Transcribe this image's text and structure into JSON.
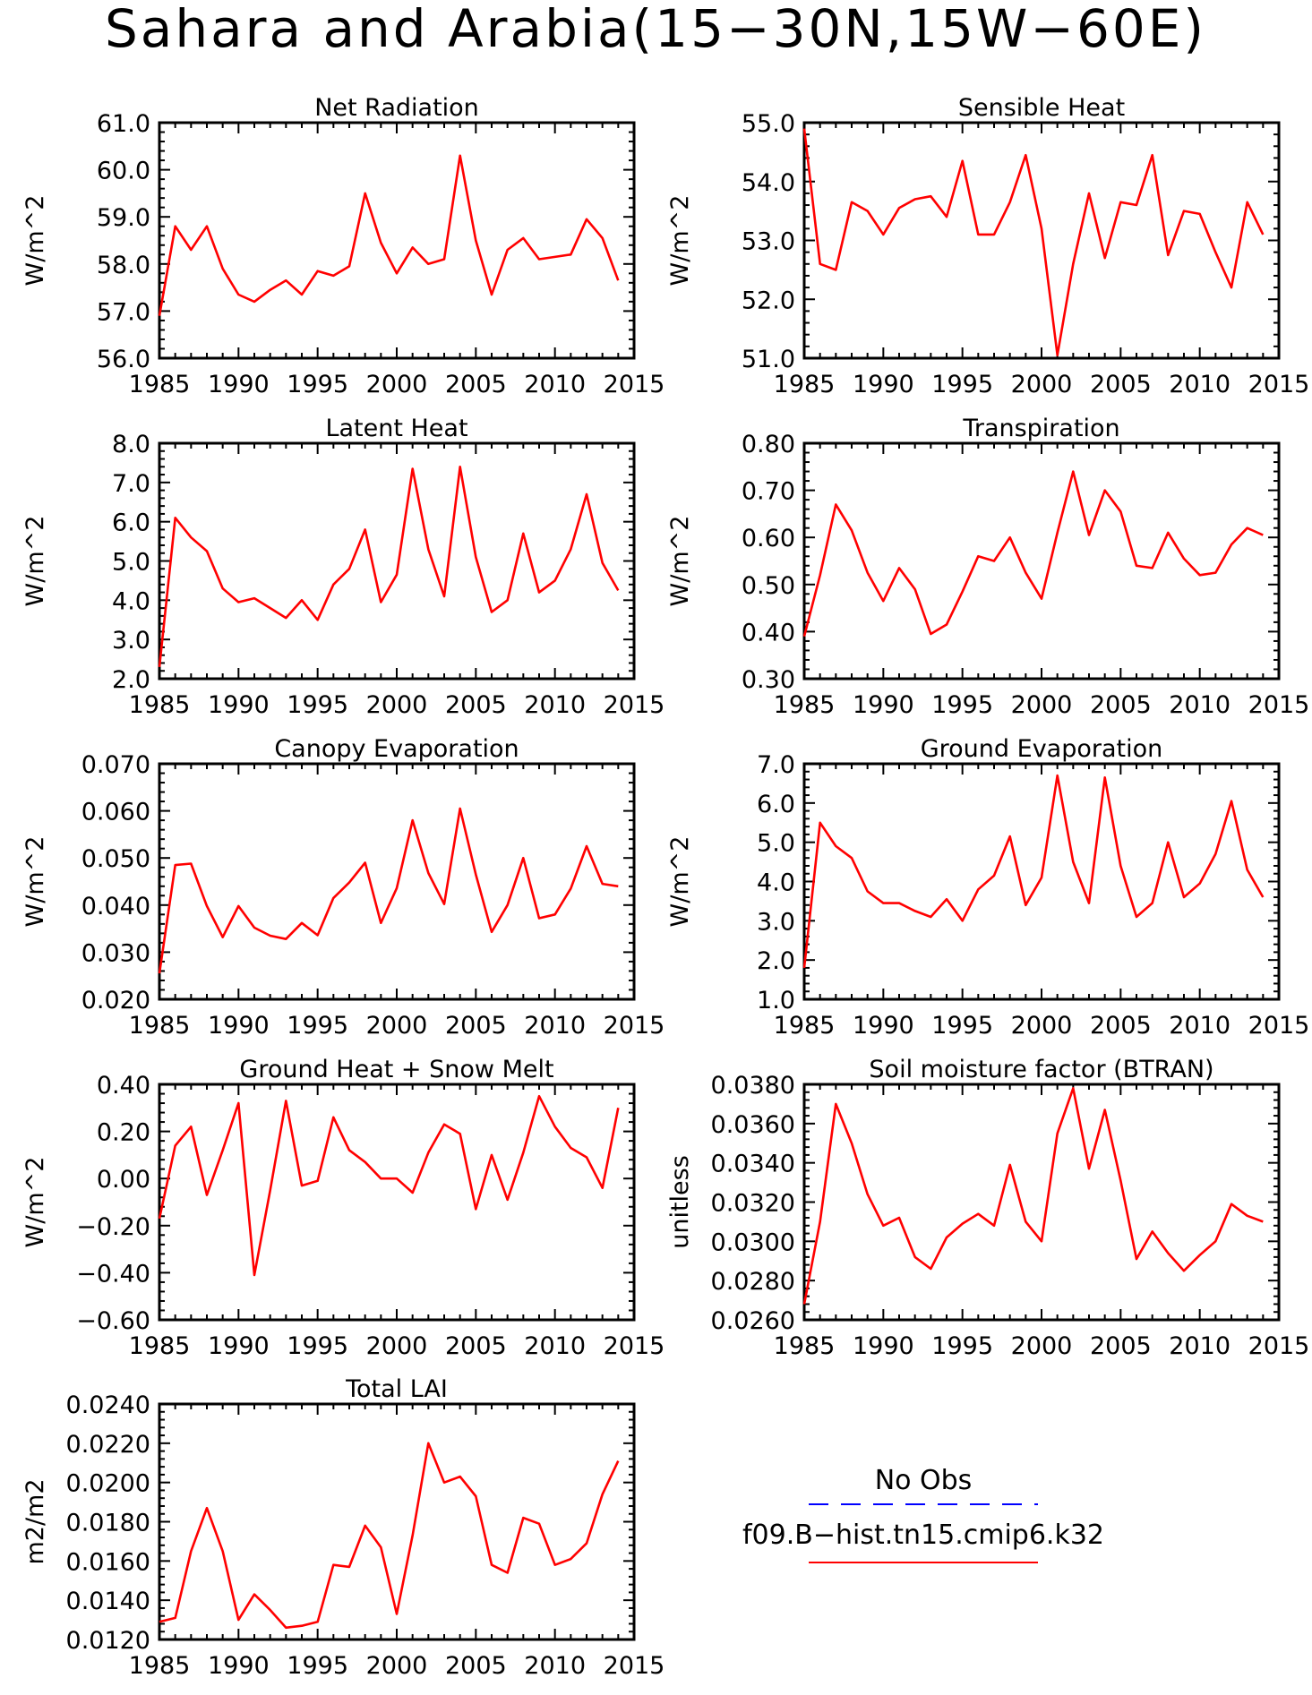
{
  "title": "Sahara and Arabia(15−30N,15W−60E)",
  "colors": {
    "model": "#ff0000",
    "obs": "#0000ff"
  },
  "legend": {
    "obs_label": "No Obs",
    "model_label": "f09.B−hist.tn15.cmip6.k32"
  },
  "chart_data": [
    {
      "type": "line",
      "title": "Net Radiation",
      "ylabel": "W/m^2",
      "xlim": [
        1985,
        2015
      ],
      "ylim": [
        56.0,
        61.0
      ],
      "xticks": [
        1985,
        1990,
        1995,
        2000,
        2005,
        2010,
        2015
      ],
      "yticks": [
        "56.0",
        "57.0",
        "58.0",
        "59.0",
        "60.0",
        "61.0"
      ],
      "x": [
        1985,
        1986,
        1987,
        1988,
        1989,
        1990,
        1991,
        1992,
        1993,
        1994,
        1995,
        1996,
        1997,
        1998,
        1999,
        2000,
        2001,
        2002,
        2003,
        2004,
        2005,
        2006,
        2007,
        2008,
        2009,
        2010,
        2011,
        2012,
        2013,
        2014
      ],
      "series": [
        {
          "values": [
            56.9,
            58.8,
            58.3,
            58.8,
            57.9,
            57.35,
            57.2,
            57.45,
            57.65,
            57.35,
            57.85,
            57.75,
            57.95,
            59.5,
            58.45,
            57.8,
            58.35,
            58.0,
            58.1,
            60.3,
            58.5,
            57.35,
            58.3,
            58.55,
            58.1,
            58.15,
            58.2,
            58.95,
            58.55,
            57.65
          ]
        }
      ]
    },
    {
      "type": "line",
      "title": "Sensible Heat",
      "ylabel": "W/m^2",
      "xlim": [
        1985,
        2015
      ],
      "ylim": [
        51.0,
        55.0
      ],
      "xticks": [
        1985,
        1990,
        1995,
        2000,
        2005,
        2010,
        2015
      ],
      "yticks": [
        "51.0",
        "52.0",
        "53.0",
        "54.0",
        "55.0"
      ],
      "x": [
        1985,
        1986,
        1987,
        1988,
        1989,
        1990,
        1991,
        1992,
        1993,
        1994,
        1995,
        1996,
        1997,
        1998,
        1999,
        2000,
        2001,
        2002,
        2003,
        2004,
        2005,
        2006,
        2007,
        2008,
        2009,
        2010,
        2011,
        2012,
        2013,
        2014
      ],
      "series": [
        {
          "values": [
            54.9,
            52.6,
            52.5,
            53.65,
            53.5,
            53.1,
            53.55,
            53.7,
            53.75,
            53.4,
            54.35,
            53.1,
            53.1,
            53.65,
            54.45,
            53.2,
            51.05,
            52.6,
            53.8,
            52.7,
            53.65,
            53.6,
            54.45,
            52.75,
            53.5,
            53.45,
            52.8,
            52.2,
            53.65,
            53.1
          ]
        }
      ]
    },
    {
      "type": "line",
      "title": "Latent Heat",
      "ylabel": "W/m^2",
      "xlim": [
        1985,
        2015
      ],
      "ylim": [
        2.0,
        8.0
      ],
      "xticks": [
        1985,
        1990,
        1995,
        2000,
        2005,
        2010,
        2015
      ],
      "yticks": [
        "2.0",
        "3.0",
        "4.0",
        "5.0",
        "6.0",
        "7.0",
        "8.0"
      ],
      "x": [
        1985,
        1986,
        1987,
        1988,
        1989,
        1990,
        1991,
        1992,
        1993,
        1994,
        1995,
        1996,
        1997,
        1998,
        1999,
        2000,
        2001,
        2002,
        2003,
        2004,
        2005,
        2006,
        2007,
        2008,
        2009,
        2010,
        2011,
        2012,
        2013,
        2014
      ],
      "series": [
        {
          "values": [
            2.3,
            6.1,
            5.6,
            5.25,
            4.3,
            3.95,
            4.05,
            3.8,
            3.55,
            4.0,
            3.5,
            4.4,
            4.8,
            5.8,
            3.95,
            4.65,
            7.35,
            5.3,
            4.1,
            7.4,
            5.1,
            3.7,
            4.0,
            5.7,
            4.2,
            4.5,
            5.3,
            6.7,
            4.95,
            4.25
          ]
        }
      ]
    },
    {
      "type": "line",
      "title": "Transpiration",
      "ylabel": "W/m^2",
      "xlim": [
        1985,
        2015
      ],
      "ylim": [
        0.3,
        0.8
      ],
      "xticks": [
        1985,
        1990,
        1995,
        2000,
        2005,
        2010,
        2015
      ],
      "yticks": [
        "0.30",
        "0.40",
        "0.50",
        "0.60",
        "0.70",
        "0.80"
      ],
      "x": [
        1985,
        1986,
        1987,
        1988,
        1989,
        1990,
        1991,
        1992,
        1993,
        1994,
        1995,
        1996,
        1997,
        1998,
        1999,
        2000,
        2001,
        2002,
        2003,
        2004,
        2005,
        2006,
        2007,
        2008,
        2009,
        2010,
        2011,
        2012,
        2013,
        2014
      ],
      "series": [
        {
          "values": [
            0.39,
            0.52,
            0.67,
            0.615,
            0.525,
            0.465,
            0.535,
            0.49,
            0.395,
            0.415,
            0.485,
            0.56,
            0.55,
            0.6,
            0.525,
            0.47,
            0.61,
            0.74,
            0.605,
            0.7,
            0.655,
            0.54,
            0.535,
            0.61,
            0.555,
            0.52,
            0.525,
            0.585,
            0.62,
            0.605
          ]
        }
      ]
    },
    {
      "type": "line",
      "title": "Canopy Evaporation",
      "ylabel": "W/m^2",
      "xlim": [
        1985,
        2015
      ],
      "ylim": [
        0.02,
        0.07
      ],
      "xticks": [
        1985,
        1990,
        1995,
        2000,
        2005,
        2010,
        2015
      ],
      "yticks": [
        "0.020",
        "0.030",
        "0.040",
        "0.050",
        "0.060",
        "0.070"
      ],
      "x": [
        1985,
        1986,
        1987,
        1988,
        1989,
        1990,
        1991,
        1992,
        1993,
        1994,
        1995,
        1996,
        1997,
        1998,
        1999,
        2000,
        2001,
        2002,
        2003,
        2004,
        2005,
        2006,
        2007,
        2008,
        2009,
        2010,
        2011,
        2012,
        2013,
        2014
      ],
      "series": [
        {
          "values": [
            0.0255,
            0.0485,
            0.0488,
            0.0398,
            0.0332,
            0.0398,
            0.0352,
            0.0335,
            0.0328,
            0.0362,
            0.0336,
            0.0415,
            0.0448,
            0.049,
            0.0362,
            0.0436,
            0.058,
            0.0468,
            0.0402,
            0.0605,
            0.0465,
            0.0343,
            0.04,
            0.05,
            0.0372,
            0.038,
            0.0435,
            0.0525,
            0.0445,
            0.044
          ]
        }
      ]
    },
    {
      "type": "line",
      "title": "Ground Evaporation",
      "ylabel": "W/m^2",
      "xlim": [
        1985,
        2015
      ],
      "ylim": [
        1.0,
        7.0
      ],
      "xticks": [
        1985,
        1990,
        1995,
        2000,
        2005,
        2010,
        2015
      ],
      "yticks": [
        "1.0",
        "2.0",
        "3.0",
        "4.0",
        "5.0",
        "6.0",
        "7.0"
      ],
      "x": [
        1985,
        1986,
        1987,
        1988,
        1989,
        1990,
        1991,
        1992,
        1993,
        1994,
        1995,
        1996,
        1997,
        1998,
        1999,
        2000,
        2001,
        2002,
        2003,
        2004,
        2005,
        2006,
        2007,
        2008,
        2009,
        2010,
        2011,
        2012,
        2013,
        2014
      ],
      "series": [
        {
          "values": [
            1.8,
            5.5,
            4.9,
            4.6,
            3.75,
            3.45,
            3.45,
            3.25,
            3.1,
            3.55,
            3.0,
            3.8,
            4.15,
            5.15,
            3.4,
            4.1,
            6.7,
            4.5,
            3.45,
            6.65,
            4.4,
            3.1,
            3.45,
            5.0,
            3.6,
            3.95,
            4.7,
            6.05,
            4.3,
            3.6
          ]
        }
      ]
    },
    {
      "type": "line",
      "title": "Ground Heat + Snow Melt",
      "ylabel": "W/m^2",
      "xlim": [
        1985,
        2015
      ],
      "ylim": [
        -0.6,
        0.4
      ],
      "xticks": [
        1985,
        1990,
        1995,
        2000,
        2005,
        2010,
        2015
      ],
      "yticks": [
        "−0.60",
        "−0.40",
        "−0.20",
        "0.00",
        "0.20",
        "0.40"
      ],
      "x": [
        1985,
        1986,
        1987,
        1988,
        1989,
        1990,
        1991,
        1992,
        1993,
        1994,
        1995,
        1996,
        1997,
        1998,
        1999,
        2000,
        2001,
        2002,
        2003,
        2004,
        2005,
        2006,
        2007,
        2008,
        2009,
        2010,
        2011,
        2012,
        2013,
        2014
      ],
      "series": [
        {
          "values": [
            -0.17,
            0.14,
            0.22,
            -0.07,
            0.12,
            0.32,
            -0.41,
            -0.05,
            0.33,
            -0.03,
            -0.01,
            0.26,
            0.12,
            0.07,
            0.0,
            0.0,
            -0.06,
            0.11,
            0.23,
            0.19,
            -0.13,
            0.1,
            -0.09,
            0.11,
            0.35,
            0.22,
            0.13,
            0.09,
            -0.04,
            0.3
          ]
        }
      ]
    },
    {
      "type": "line",
      "title": "Soil moisture factor (BTRAN)",
      "ylabel": "unitless",
      "xlim": [
        1985,
        2015
      ],
      "ylim": [
        0.026,
        0.038
      ],
      "xticks": [
        1985,
        1990,
        1995,
        2000,
        2005,
        2010,
        2015
      ],
      "yticks": [
        "0.0260",
        "0.0280",
        "0.0300",
        "0.0320",
        "0.0340",
        "0.0360",
        "0.0380"
      ],
      "x": [
        1985,
        1986,
        1987,
        1988,
        1989,
        1990,
        1991,
        1992,
        1993,
        1994,
        1995,
        1996,
        1997,
        1998,
        1999,
        2000,
        2001,
        2002,
        2003,
        2004,
        2005,
        2006,
        2007,
        2008,
        2009,
        2010,
        2011,
        2012,
        2013,
        2014
      ],
      "series": [
        {
          "values": [
            0.0268,
            0.031,
            0.037,
            0.035,
            0.0324,
            0.0308,
            0.0312,
            0.0292,
            0.0286,
            0.0302,
            0.0309,
            0.0314,
            0.0308,
            0.0339,
            0.031,
            0.03,
            0.0355,
            0.0378,
            0.0337,
            0.0367,
            0.0331,
            0.0291,
            0.0305,
            0.0294,
            0.0285,
            0.0293,
            0.03,
            0.0319,
            0.0313,
            0.031
          ]
        }
      ]
    },
    {
      "type": "line",
      "title": "Total LAI",
      "ylabel": "m2/m2",
      "xlim": [
        1985,
        2015
      ],
      "ylim": [
        0.012,
        0.024
      ],
      "xticks": [
        1985,
        1990,
        1995,
        2000,
        2005,
        2010,
        2015
      ],
      "yticks": [
        "0.0120",
        "0.0140",
        "0.0160",
        "0.0180",
        "0.0200",
        "0.0220",
        "0.0240"
      ],
      "x": [
        1985,
        1986,
        1987,
        1988,
        1989,
        1990,
        1991,
        1992,
        1993,
        1994,
        1995,
        1996,
        1997,
        1998,
        1999,
        2000,
        2001,
        2002,
        2003,
        2004,
        2005,
        2006,
        2007,
        2008,
        2009,
        2010,
        2011,
        2012,
        2013,
        2014
      ],
      "series": [
        {
          "values": [
            0.0129,
            0.0131,
            0.0165,
            0.0187,
            0.0165,
            0.013,
            0.0143,
            0.0135,
            0.0126,
            0.0127,
            0.0129,
            0.0158,
            0.0157,
            0.0178,
            0.0167,
            0.0133,
            0.0173,
            0.022,
            0.02,
            0.0203,
            0.0193,
            0.0158,
            0.0154,
            0.0182,
            0.0179,
            0.0158,
            0.0161,
            0.0169,
            0.0194,
            0.0211
          ]
        }
      ]
    }
  ]
}
